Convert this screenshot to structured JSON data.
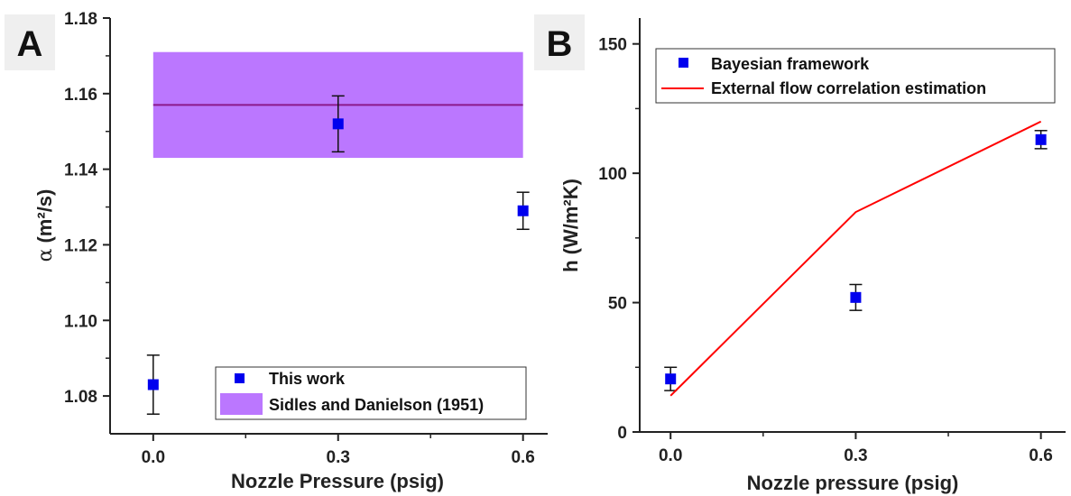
{
  "chart_data": [
    {
      "panel": "A",
      "type": "scatter",
      "xlabel": "Nozzle Pressure (psig)",
      "ylabel_symbol": "α",
      "ylabel_unit": "(m²/s)",
      "xlim": [
        -0.07,
        0.64
      ],
      "ylim": [
        1.07,
        1.18
      ],
      "xticks": [
        0.0,
        0.3,
        0.6
      ],
      "xtick_labels": [
        "0.0",
        "0.3",
        "0.6"
      ],
      "yticks": [
        1.08,
        1.1,
        1.12,
        1.14,
        1.16,
        1.18
      ],
      "ytick_labels": [
        "1.08",
        "1.10",
        "1.12",
        "1.14",
        "1.16",
        "1.18"
      ],
      "series": [
        {
          "name": "This work",
          "kind": "points",
          "color": "#0000ee",
          "x": [
            0.0,
            0.3,
            0.6
          ],
          "y": [
            1.083,
            1.152,
            1.129
          ],
          "err": [
            0.0078,
            0.0074,
            0.0049
          ]
        }
      ],
      "band": {
        "name": "Sidles and Danielson (1951)",
        "fill": "#bb77ff",
        "line_color": "#8b1a8b",
        "x_range": [
          0.0,
          0.6
        ],
        "center": 1.157,
        "lower": 1.143,
        "upper": 1.171
      },
      "legend_position": "bottom-right"
    },
    {
      "panel": "B",
      "type": "scatter",
      "xlabel": "Nozzle pressure (psig)",
      "ylabel": "h (W/m²K)",
      "xlim": [
        -0.05,
        0.64
      ],
      "ylim": [
        0,
        160
      ],
      "xticks": [
        0.0,
        0.3,
        0.6
      ],
      "xtick_labels": [
        "0.0",
        "0.3",
        "0.6"
      ],
      "yticks": [
        0,
        50,
        100,
        150
      ],
      "ytick_labels": [
        "0",
        "50",
        "100",
        "150"
      ],
      "series": [
        {
          "name": "Bayesian framework",
          "kind": "points",
          "color": "#0000ee",
          "x": [
            0.0,
            0.3,
            0.6
          ],
          "y": [
            20.5,
            52,
            113
          ],
          "err": [
            4.5,
            5,
            3.5
          ]
        },
        {
          "name": "External flow correlation estimation",
          "kind": "line",
          "color": "#ff0000",
          "x": [
            0.0,
            0.3,
            0.6
          ],
          "y": [
            14,
            85,
            120
          ]
        }
      ],
      "legend_position": "top-left"
    }
  ],
  "panel_letters": [
    "A",
    "B"
  ]
}
